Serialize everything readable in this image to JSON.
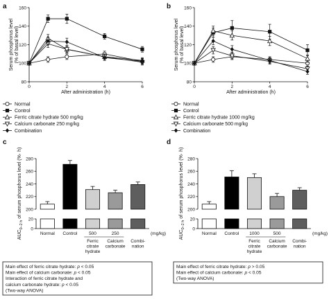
{
  "chart_data": [
    {
      "panel": "a",
      "type": "line",
      "xlabel": "After administration (h)",
      "ylabel": "Serum phosphorus level",
      "ylabel_units": "(% of basal level)",
      "xlim": [
        0,
        6
      ],
      "xticks": [
        0,
        2,
        4,
        6
      ],
      "ylim": [
        80,
        160
      ],
      "yticks": [
        80,
        100,
        120,
        140,
        160
      ],
      "x": [
        0,
        1,
        2,
        4,
        6
      ],
      "series": [
        {
          "name": "Normal",
          "marker": "circle-open",
          "values": [
            100,
            104,
            107,
            110,
            102
          ],
          "err": [
            2,
            3,
            3,
            3,
            3
          ]
        },
        {
          "name": "Control",
          "marker": "square-filled",
          "values": [
            100,
            148,
            148,
            129,
            115
          ],
          "err": [
            2,
            4,
            5,
            3,
            3
          ]
        },
        {
          "name": "Ferric citrate hydrate 500 mg/kg",
          "marker": "triangle-up-open",
          "values": [
            100,
            127,
            115,
            107,
            103
          ],
          "err": [
            2,
            4,
            4,
            3,
            3
          ]
        },
        {
          "name": "Calcium carbonate 250 mg/kg",
          "marker": "triangle-down-open",
          "values": [
            100,
            121,
            115,
            107,
            101
          ],
          "err": [
            2,
            4,
            3,
            3,
            3
          ]
        },
        {
          "name": "Combination",
          "marker": "diamond-filled",
          "values": [
            100,
            124,
            123,
            106,
            102
          ],
          "err": [
            2,
            4,
            4,
            3,
            3
          ]
        }
      ],
      "legend": [
        "Normal",
        "Control",
        "Ferric citrate hydrate 500 mg/kg",
        "Calcium carbonate 250 mg/kg",
        "Combination"
      ]
    },
    {
      "panel": "b",
      "type": "line",
      "xlabel": "After administration (h)",
      "ylabel": "Serum phosphorus level",
      "ylabel_units": "(% of basal level)",
      "xlim": [
        0,
        6
      ],
      "xticks": [
        0,
        2,
        4,
        6
      ],
      "ylim": [
        80,
        160
      ],
      "yticks": [
        80,
        100,
        120,
        140,
        160
      ],
      "x": [
        0,
        1,
        2,
        4,
        6
      ],
      "series": [
        {
          "name": "Normal",
          "marker": "circle-open",
          "values": [
            100,
            104,
            107,
            104,
            100
          ],
          "err": [
            2,
            3,
            3,
            3,
            3
          ]
        },
        {
          "name": "Control",
          "marker": "square-filled",
          "values": [
            100,
            133,
            138,
            134,
            114
          ],
          "err": [
            2,
            5,
            8,
            8,
            6
          ]
        },
        {
          "name": "Ferric citrate hydrate 1000 mg/kg",
          "marker": "triangle-up-open",
          "values": [
            100,
            135,
            130,
            124,
            105
          ],
          "err": [
            2,
            5,
            5,
            5,
            4
          ]
        },
        {
          "name": "Calcium carbonate 500 mg/kg",
          "marker": "triangle-down-open",
          "values": [
            100,
            114,
            108,
            102,
            94
          ],
          "err": [
            2,
            4,
            4,
            3,
            3
          ]
        },
        {
          "name": "Combination",
          "marker": "diamond-filled",
          "values": [
            100,
            124,
            115,
            103,
            91
          ],
          "err": [
            2,
            4,
            4,
            3,
            3
          ]
        }
      ],
      "legend": [
        "Normal",
        "Control",
        "Ferric citrate hydrate 1000 mg/kg",
        "Calcium carbonate 500 mg/kg",
        "Combination"
      ]
    },
    {
      "panel": "c",
      "type": "bar",
      "ylabel_pre": "AUC",
      "ylabel_sub": "0–2 h",
      "ylabel_post": " of serum phosphorus level (%· h)",
      "ylim_upper": [
        200,
        280
      ],
      "yticks_upper": [
        200,
        220,
        240,
        260,
        280
      ],
      "ylim_lower": [
        0,
        20
      ],
      "yticks_lower": [
        0,
        20
      ],
      "categories": [
        "Normal",
        "Control",
        "Ferric citrate hydrate",
        "Calcium carbonate",
        "Combi- nation"
      ],
      "dose_labels": [
        "",
        "",
        "500",
        "250",
        "",
        "(mg/kg)"
      ],
      "name_labels": [
        [
          "Normal"
        ],
        [
          "Control"
        ],
        [
          "Ferric",
          "citrate",
          "hydrate"
        ],
        [
          "Calcium",
          "carbonate"
        ],
        [
          "Combi-",
          "nation"
        ]
      ],
      "values": [
        208,
        271,
        231,
        226,
        239
      ],
      "err": [
        4,
        6,
        5,
        4,
        4
      ],
      "fills": [
        "#ffffff",
        "#000000",
        "#d0d0d0",
        "#9a9a9a",
        "#5e5e5e"
      ],
      "stats_box": [
        "Main effect of ferric citrate hydrate: p < 0.05",
        "Main effect of calcium carbonate: p < 0.05",
        "Interaction of ferric citrate hydrate and",
        "calcium carbonate hydrate: p < 0.05",
        "(Two-way ANOVA)"
      ]
    },
    {
      "panel": "d",
      "type": "bar",
      "ylabel_pre": "AUC",
      "ylabel_sub": "0–2 h",
      "ylabel_post": " of serum phosphorus level (%· h)",
      "ylim_upper": [
        200,
        280
      ],
      "yticks_upper": [
        200,
        220,
        240,
        260,
        280
      ],
      "ylim_lower": [
        0,
        20
      ],
      "yticks_lower": [
        0,
        20
      ],
      "categories": [
        "Normal",
        "Control",
        "Ferric citrate hydrate",
        "Calcium carbonate",
        "Combi- nation"
      ],
      "dose_labels": [
        "",
        "",
        "1000",
        "500",
        "",
        "(mg/kg)"
      ],
      "name_labels": [
        [
          "Normal"
        ],
        [
          "Control"
        ],
        [
          "Ferric",
          "citrate",
          "hydrate"
        ],
        [
          "Calcium",
          "carbonate"
        ],
        [
          "Combi-",
          "nation"
        ]
      ],
      "values": [
        208,
        251,
        250,
        220,
        230
      ],
      "err": [
        4,
        10,
        6,
        5,
        4
      ],
      "fills": [
        "#ffffff",
        "#000000",
        "#d0d0d0",
        "#9a9a9a",
        "#5e5e5e"
      ],
      "stats_box": [
        "Main effect of ferric citrate hydrate: p > 0.05",
        "Main effect of calcium carbonate: p < 0.05",
        "(Two-way ANOVA)"
      ]
    }
  ]
}
